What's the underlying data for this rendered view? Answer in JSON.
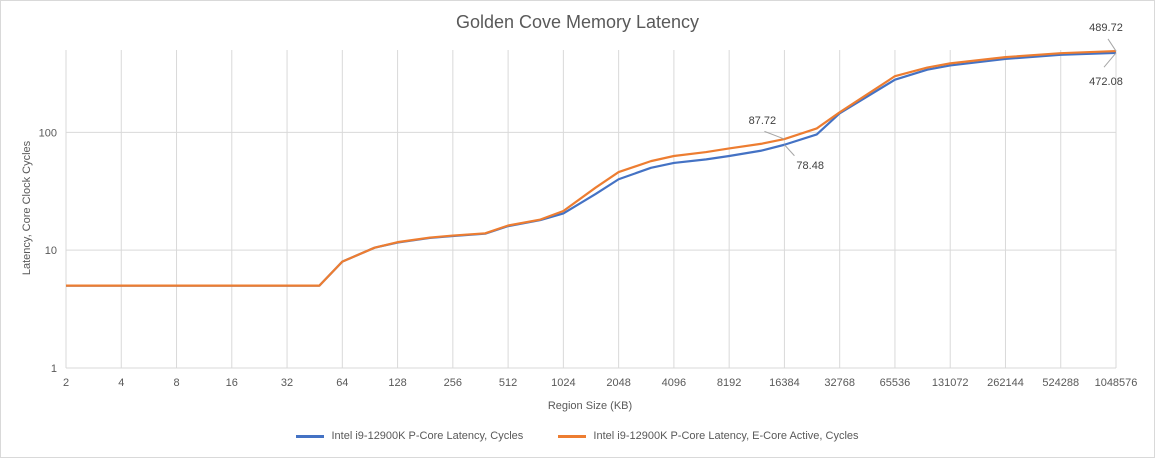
{
  "chart_data": {
    "type": "line",
    "title": "Golden Cove Memory Latency",
    "xlabel": "Region Size (KB)",
    "ylabel": "Latency, Core Clock Cycles",
    "y_scale": "log",
    "ylim": [
      1,
      500
    ],
    "x_scale": "log2",
    "x_ticks": [
      2,
      4,
      8,
      16,
      32,
      64,
      128,
      256,
      512,
      1024,
      2048,
      4096,
      8192,
      16384,
      32768,
      65536,
      131072,
      262144,
      524288,
      1048576
    ],
    "y_ticks": [
      1,
      10,
      100
    ],
    "grid": "vertical",
    "legend_position": "bottom",
    "series": [
      {
        "name": "Intel i9-12900K P-Core Latency, Cycles",
        "color": "#4472c4",
        "points": [
          [
            2,
            5
          ],
          [
            4,
            5
          ],
          [
            8,
            5
          ],
          [
            16,
            5
          ],
          [
            32,
            5
          ],
          [
            48,
            5
          ],
          [
            64,
            8
          ],
          [
            96,
            10.5
          ],
          [
            128,
            11.6
          ],
          [
            192,
            12.7
          ],
          [
            256,
            13.2
          ],
          [
            384,
            13.8
          ],
          [
            512,
            16
          ],
          [
            768,
            18
          ],
          [
            1024,
            20.5
          ],
          [
            1536,
            30
          ],
          [
            2048,
            40
          ],
          [
            3072,
            50
          ],
          [
            4096,
            55
          ],
          [
            6144,
            59
          ],
          [
            8192,
            63
          ],
          [
            12288,
            70
          ],
          [
            16384,
            78.48
          ],
          [
            24576,
            96
          ],
          [
            32768,
            145
          ],
          [
            65536,
            280
          ],
          [
            98304,
            340
          ],
          [
            131072,
            370
          ],
          [
            262144,
            420
          ],
          [
            524288,
            455
          ],
          [
            1048576,
            472.08
          ]
        ]
      },
      {
        "name": "Intel i9-12900K P-Core Latency, E-Core Active, Cycles",
        "color": "#ed7d31",
        "points": [
          [
            2,
            5
          ],
          [
            4,
            5
          ],
          [
            8,
            5
          ],
          [
            16,
            5
          ],
          [
            32,
            5
          ],
          [
            48,
            5
          ],
          [
            64,
            8
          ],
          [
            96,
            10.5
          ],
          [
            128,
            11.7
          ],
          [
            192,
            12.8
          ],
          [
            256,
            13.3
          ],
          [
            384,
            13.9
          ],
          [
            512,
            16.2
          ],
          [
            768,
            18.2
          ],
          [
            1024,
            21.5
          ],
          [
            1536,
            34
          ],
          [
            2048,
            46
          ],
          [
            3072,
            57
          ],
          [
            4096,
            63
          ],
          [
            6144,
            68
          ],
          [
            8192,
            73
          ],
          [
            12288,
            80
          ],
          [
            16384,
            87.72
          ],
          [
            24576,
            108
          ],
          [
            32768,
            148
          ],
          [
            65536,
            300
          ],
          [
            98304,
            355
          ],
          [
            131072,
            385
          ],
          [
            262144,
            435
          ],
          [
            524288,
            470
          ],
          [
            1048576,
            489.72
          ]
        ]
      }
    ],
    "annotations": [
      {
        "text": "489.72",
        "series": 1,
        "x": 1048576,
        "y": 489.72
      },
      {
        "text": "472.08",
        "series": 0,
        "x": 1048576,
        "y": 472.08
      },
      {
        "text": "87.72",
        "series": 1,
        "x": 16384,
        "y": 87.72
      },
      {
        "text": "78.48",
        "series": 0,
        "x": 16384,
        "y": 78.48
      }
    ]
  }
}
